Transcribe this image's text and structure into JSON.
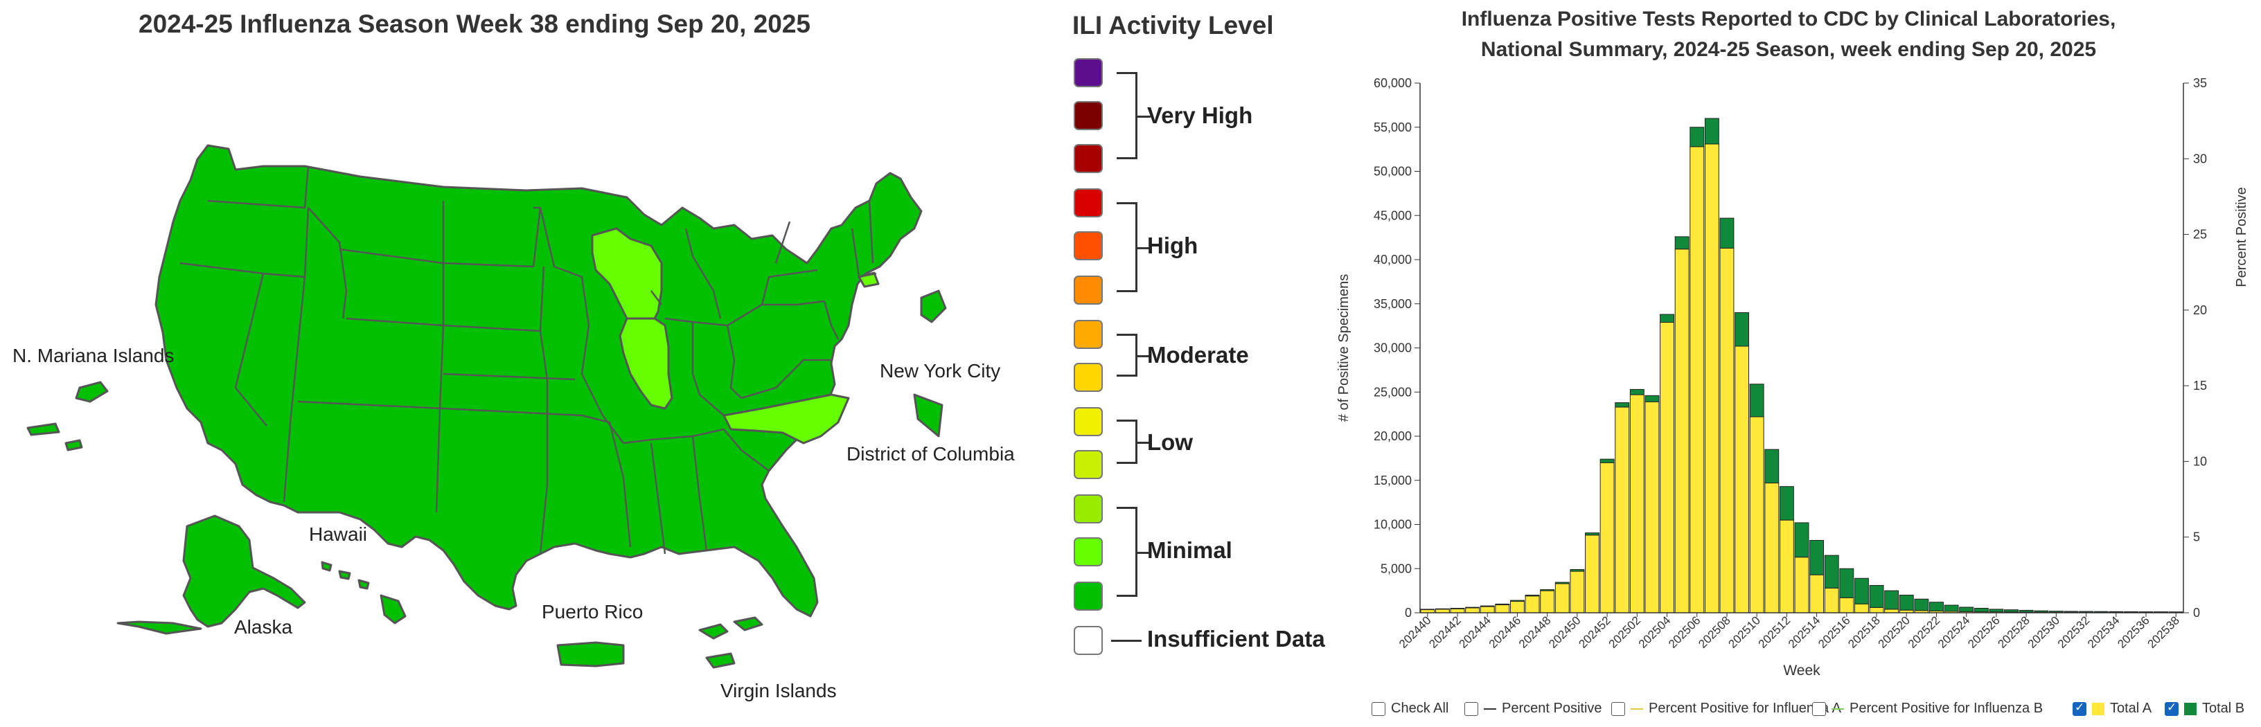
{
  "map": {
    "title": "2024-25 Influenza Season Week 38 ending Sep 20, 2025",
    "colors": {
      "minimal_dark": "#00c000",
      "minimal_light": "#66ff00",
      "state_border": "#555555"
    },
    "labels": {
      "mariana": "N. Mariana Islands",
      "nyc": "New York City",
      "dc": "District of Columbia",
      "hawaii": "Hawaii",
      "alaska": "Alaska",
      "puerto_rico": "Puerto Rico",
      "virgin_islands": "Virgin Islands"
    }
  },
  "legend": {
    "title": "ILI Activity Level",
    "levels": [
      {
        "color": "#5b0f8c"
      },
      {
        "color": "#7a0000"
      },
      {
        "color": "#a80000"
      },
      {
        "color": "#d80000"
      },
      {
        "color": "#ff5000"
      },
      {
        "color": "#ff8c00"
      },
      {
        "color": "#ffaa00"
      },
      {
        "color": "#ffd700"
      },
      {
        "color": "#f0f000"
      },
      {
        "color": "#c8f000"
      },
      {
        "color": "#99ee00"
      },
      {
        "color": "#66ff00"
      },
      {
        "color": "#00c000"
      },
      {
        "color": "#ffffff"
      }
    ],
    "groups": {
      "very_high": "Very High",
      "high": "High",
      "moderate": "Moderate",
      "low": "Low",
      "minimal": "Minimal",
      "insufficient": "Insufficient Data"
    }
  },
  "chart_data": {
    "type": "bar",
    "title_line1": "Influenza Positive Tests Reported to CDC by Clinical Laboratories,",
    "title_line2": "National Summary, 2024-25 Season, week ending Sep 20, 2025",
    "xlabel": "Week",
    "ylabel": "# of Positive Specimens",
    "y2label": "Percent Positive",
    "ylim": [
      0,
      60000
    ],
    "y2lim": [
      0,
      35
    ],
    "stacked": true,
    "yticks": [
      "0",
      "5,000",
      "10,000",
      "15,000",
      "20,000",
      "25,000",
      "30,000",
      "35,000",
      "40,000",
      "45,000",
      "50,000",
      "55,000",
      "60,000"
    ],
    "y2ticks": [
      "0",
      "5",
      "10",
      "15",
      "20",
      "25",
      "30",
      "35"
    ],
    "categories": [
      "202440",
      "202441",
      "202442",
      "202443",
      "202444",
      "202445",
      "202446",
      "202447",
      "202448",
      "202449",
      "202450",
      "202451",
      "202452",
      "202501",
      "202502",
      "202503",
      "202504",
      "202505",
      "202506",
      "202507",
      "202508",
      "202509",
      "202510",
      "202511",
      "202512",
      "202513",
      "202514",
      "202515",
      "202516",
      "202517",
      "202518",
      "202519",
      "202520",
      "202521",
      "202522",
      "202523",
      "202524",
      "202525",
      "202526",
      "202527",
      "202528",
      "202529",
      "202530",
      "202531",
      "202532",
      "202533",
      "202534",
      "202535",
      "202536",
      "202537",
      "202538"
    ],
    "tick_labels": [
      "202440",
      "202442",
      "202444",
      "202446",
      "202448",
      "202450",
      "202452",
      "202502",
      "202504",
      "202506",
      "202508",
      "202510",
      "202512",
      "202514",
      "202516",
      "202518",
      "202520",
      "202522",
      "202524",
      "202526",
      "202528",
      "202530",
      "202532",
      "202534",
      "202536",
      "202538"
    ],
    "series": [
      {
        "name": "Total A",
        "color": "#ffe838",
        "values": [
          350,
          400,
          450,
          550,
          700,
          900,
          1300,
          1900,
          2500,
          3300,
          4700,
          8800,
          17000,
          23300,
          24700,
          23900,
          32900,
          41200,
          52800,
          53100,
          41300,
          30200,
          22200,
          14700,
          10500,
          6300,
          4300,
          2800,
          1700,
          1000,
          600,
          400,
          300,
          250,
          200,
          160,
          130,
          110,
          100,
          90,
          80,
          70,
          60,
          60,
          50,
          50,
          50,
          50,
          50,
          50,
          50
        ]
      },
      {
        "name": "Total B",
        "color": "#11893a",
        "values": [
          50,
          50,
          60,
          70,
          80,
          90,
          100,
          100,
          120,
          150,
          200,
          250,
          400,
          500,
          600,
          700,
          900,
          1400,
          2200,
          2900,
          3400,
          3800,
          3700,
          3800,
          3800,
          3900,
          3900,
          3700,
          3300,
          2900,
          2500,
          2100,
          1700,
          1300,
          1000,
          700,
          500,
          400,
          300,
          250,
          200,
          150,
          120,
          100,
          100,
          90,
          80,
          70,
          60,
          60,
          50
        ]
      }
    ],
    "legend_items": [
      {
        "label": "Check All",
        "checked": false,
        "symbol": "none"
      },
      {
        "label": "Percent Positive",
        "checked": false,
        "symbol": "line",
        "color": "#333333"
      },
      {
        "label": "Percent Positive for Influenza A",
        "checked": false,
        "symbol": "line",
        "color": "#e8c84a"
      },
      {
        "label": "Percent Positive for Influenza B",
        "checked": false,
        "symbol": "line",
        "color": "#7ccf5a"
      },
      {
        "label": "Total A",
        "checked": true,
        "symbol": "square",
        "color": "#ffe838"
      },
      {
        "label": "Total B",
        "checked": true,
        "symbol": "square",
        "color": "#11893a"
      }
    ]
  }
}
